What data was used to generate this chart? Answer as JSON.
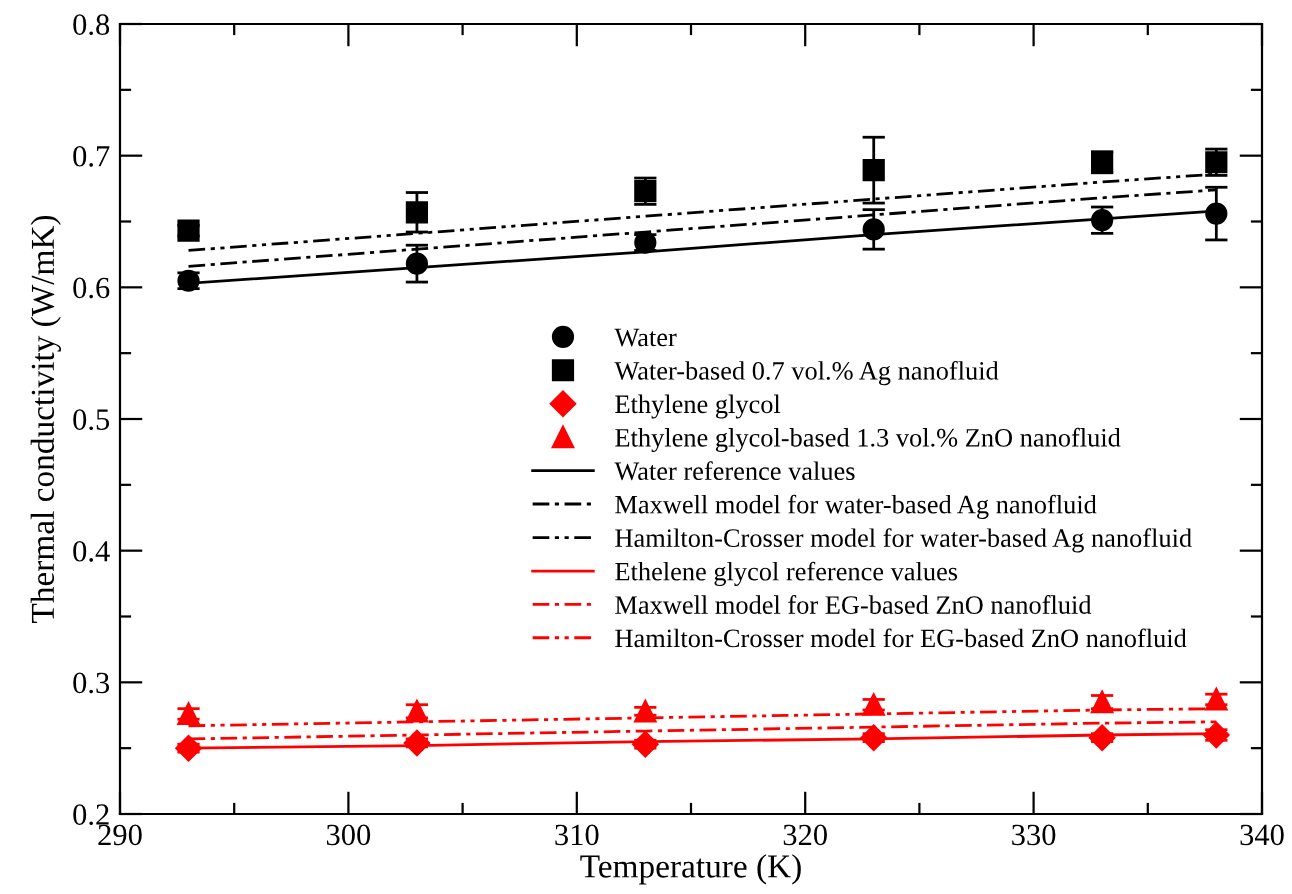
{
  "chart_data": {
    "type": "scatter",
    "xlabel": "Temperature (K)",
    "ylabel": "Thermal conductivity (W/mK)",
    "xlim": [
      290,
      340
    ],
    "ylim": [
      0.2,
      0.8
    ],
    "xticks": [
      290,
      {
        "value": 295,
        "label": null
      },
      300,
      {
        "value": 305,
        "label": null
      },
      310,
      {
        "value": 315,
        "label": null
      },
      320,
      {
        "value": 325,
        "label": null
      },
      330,
      {
        "value": 335,
        "label": null
      },
      340
    ],
    "yticks": [
      0.2,
      {
        "value": 0.25,
        "label": null
      },
      0.3,
      {
        "value": 0.35,
        "label": null
      },
      0.4,
      {
        "value": 0.45,
        "label": null
      },
      0.5,
      {
        "value": 0.55,
        "label": null
      },
      0.6,
      {
        "value": 0.65,
        "label": null
      },
      0.7,
      {
        "value": 0.75,
        "label": null
      },
      0.8
    ],
    "grid": false,
    "legend": "right",
    "x": [
      293,
      303,
      313,
      323,
      333,
      338
    ],
    "series": [
      {
        "name": "Water",
        "marker": "circle",
        "color": "#000000",
        "values": [
          0.605,
          0.618,
          0.634,
          0.644,
          0.651,
          0.656
        ],
        "errors": [
          0.006,
          0.014,
          0.006,
          0.015,
          0.01,
          0.02
        ]
      },
      {
        "name": "Water-based 0.7 vol.% Ag nanofluid",
        "marker": "square",
        "color": "#000000",
        "values": [
          0.643,
          0.657,
          0.673,
          0.689,
          0.695,
          0.695
        ],
        "errors": [
          0.004,
          0.015,
          0.01,
          0.025,
          0.008,
          0.01
        ]
      },
      {
        "name": "Ethylene glycol",
        "marker": "diamond",
        "color": "#ff0000",
        "values": [
          0.25,
          0.254,
          0.253,
          0.258,
          0.258,
          0.26
        ],
        "errors": [
          0.003,
          0.003,
          0.003,
          0.003,
          0.003,
          0.004
        ]
      },
      {
        "name": "Ethylene glycol-based 1.3 vol.% ZnO nanofluid",
        "marker": "triangle",
        "color": "#ff0000",
        "values": [
          0.276,
          0.278,
          0.278,
          0.283,
          0.285,
          0.287
        ],
        "errors": [
          0.004,
          0.005,
          0.003,
          0.004,
          0.005,
          0.004
        ]
      },
      {
        "name": "Water reference values",
        "type": "line",
        "line_style": "solid",
        "color": "#000000",
        "values": [
          0.603,
          0.615,
          0.627,
          0.64,
          0.652,
          0.658
        ]
      },
      {
        "name": "Maxwell model for water-based Ag nanofluid",
        "type": "line",
        "line_style": "dashdot",
        "color": "#000000",
        "values": [
          0.616,
          0.629,
          0.642,
          0.655,
          0.668,
          0.674
        ]
      },
      {
        "name": "Hamilton-Crosser model for water-based Ag nanofluid",
        "type": "line",
        "line_style": "dashdotdot",
        "color": "#000000",
        "values": [
          0.628,
          0.641,
          0.654,
          0.667,
          0.68,
          0.686
        ]
      },
      {
        "name": "Ethelene glycol reference values",
        "type": "line",
        "line_style": "solid",
        "color": "#ff0000",
        "values": [
          0.25,
          0.252,
          0.255,
          0.257,
          0.26,
          0.261
        ]
      },
      {
        "name": "Maxwell model for EG-based ZnO nanofluid",
        "type": "line",
        "line_style": "dashdot",
        "color": "#ff0000",
        "values": [
          0.257,
          0.26,
          0.263,
          0.266,
          0.269,
          0.27
        ]
      },
      {
        "name": "Hamilton-Crosser model for EG-based ZnO nanofluid",
        "type": "line",
        "line_style": "dashdotdot",
        "color": "#ff0000",
        "values": [
          0.267,
          0.27,
          0.273,
          0.276,
          0.279,
          0.28
        ]
      }
    ]
  }
}
